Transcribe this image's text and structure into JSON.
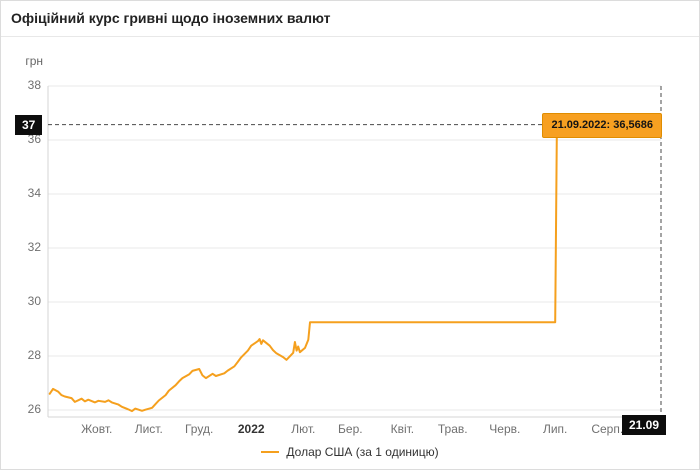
{
  "header": {
    "title": "Офіційний курс гривні щодо іноземних валют"
  },
  "tooltip": {
    "text": "21.09.2022: 36,5686"
  },
  "crosshair": {
    "y_label": "37",
    "x_label": "21.09"
  },
  "legend": {
    "label": "Долар США (за 1 одиницю)"
  },
  "colors": {
    "line": "#f5a01e",
    "tooltip_bg": "#f7a021",
    "tooltip_border": "#e08d00",
    "badge_bg": "#0d0d0d",
    "grid": "#e8e8e8",
    "axis": "#d4d4d4",
    "crosshair": "#4a4a4a"
  },
  "chart_data": {
    "type": "line",
    "title": "Офіційний курс гривні щодо іноземних валют",
    "xlabel": "",
    "ylabel": "грн",
    "ylim": [
      26,
      38
    ],
    "yticks": [
      38,
      36,
      34,
      32,
      30,
      28,
      26
    ],
    "grid": true,
    "legend_position": "bottom",
    "x_range": [
      "2021-09-21",
      "2022-09-21"
    ],
    "xticks": [
      {
        "label": "Жовт.",
        "date": "2021-10-20"
      },
      {
        "label": "Лист.",
        "date": "2021-11-20"
      },
      {
        "label": "Груд.",
        "date": "2021-12-20"
      },
      {
        "label": "2022",
        "date": "2022-01-20",
        "bold": true
      },
      {
        "label": "Лют.",
        "date": "2022-02-20"
      },
      {
        "label": "Бер.",
        "date": "2022-03-20"
      },
      {
        "label": "Квіт.",
        "date": "2022-04-20"
      },
      {
        "label": "Трав.",
        "date": "2022-05-20"
      },
      {
        "label": "Черв.",
        "date": "2022-06-20"
      },
      {
        "label": "Лип.",
        "date": "2022-07-20"
      },
      {
        "label": "Серп.",
        "date": "2022-08-20"
      }
    ],
    "series": [
      {
        "name": "Долар США (за 1 одиницю)",
        "points": [
          [
            "2021-09-22",
            26.6
          ],
          [
            "2021-09-24",
            26.78
          ],
          [
            "2021-09-27",
            26.68
          ],
          [
            "2021-09-29",
            26.55
          ],
          [
            "2021-10-01",
            26.5
          ],
          [
            "2021-10-05",
            26.44
          ],
          [
            "2021-10-07",
            26.3
          ],
          [
            "2021-10-11",
            26.42
          ],
          [
            "2021-10-13",
            26.32
          ],
          [
            "2021-10-15",
            26.38
          ],
          [
            "2021-10-19",
            26.28
          ],
          [
            "2021-10-21",
            26.34
          ],
          [
            "2021-10-25",
            26.3
          ],
          [
            "2021-10-27",
            26.36
          ],
          [
            "2021-10-29",
            26.28
          ],
          [
            "2021-11-02",
            26.2
          ],
          [
            "2021-11-04",
            26.12
          ],
          [
            "2021-11-08",
            26.02
          ],
          [
            "2021-11-10",
            25.96
          ],
          [
            "2021-11-12",
            26.05
          ],
          [
            "2021-11-16",
            25.97
          ],
          [
            "2021-11-18",
            26.01
          ],
          [
            "2021-11-22",
            26.08
          ],
          [
            "2021-11-24",
            26.22
          ],
          [
            "2021-11-26",
            26.35
          ],
          [
            "2021-11-30",
            26.55
          ],
          [
            "2021-12-02",
            26.72
          ],
          [
            "2021-12-06",
            26.92
          ],
          [
            "2021-12-08",
            27.06
          ],
          [
            "2021-12-10",
            27.18
          ],
          [
            "2021-12-14",
            27.32
          ],
          [
            "2021-12-16",
            27.45
          ],
          [
            "2021-12-20",
            27.52
          ],
          [
            "2021-12-22",
            27.28
          ],
          [
            "2021-12-24",
            27.18
          ],
          [
            "2021-12-28",
            27.34
          ],
          [
            "2021-12-30",
            27.26
          ],
          [
            "2022-01-04",
            27.36
          ],
          [
            "2022-01-06",
            27.46
          ],
          [
            "2022-01-10",
            27.62
          ],
          [
            "2022-01-12",
            27.78
          ],
          [
            "2022-01-14",
            27.95
          ],
          [
            "2022-01-18",
            28.2
          ],
          [
            "2022-01-20",
            28.38
          ],
          [
            "2022-01-24",
            28.55
          ],
          [
            "2022-01-25",
            28.63
          ],
          [
            "2022-01-26",
            28.45
          ],
          [
            "2022-01-27",
            28.58
          ],
          [
            "2022-01-31",
            28.38
          ],
          [
            "2022-02-02",
            28.22
          ],
          [
            "2022-02-04",
            28.1
          ],
          [
            "2022-02-08",
            27.96
          ],
          [
            "2022-02-10",
            27.86
          ],
          [
            "2022-02-14",
            28.12
          ],
          [
            "2022-02-15",
            28.52
          ],
          [
            "2022-02-16",
            28.2
          ],
          [
            "2022-02-17",
            28.35
          ],
          [
            "2022-02-18",
            28.14
          ],
          [
            "2022-02-21",
            28.3
          ],
          [
            "2022-02-23",
            28.6
          ],
          [
            "2022-02-24",
            29.25
          ],
          [
            "2022-07-20",
            29.25
          ],
          [
            "2022-07-21",
            36.5686
          ],
          [
            "2022-09-21",
            36.5686
          ]
        ]
      }
    ],
    "highlight": {
      "date": "2022-09-21",
      "value": 36.5686,
      "label": "21.09.2022: 36,5686"
    }
  }
}
